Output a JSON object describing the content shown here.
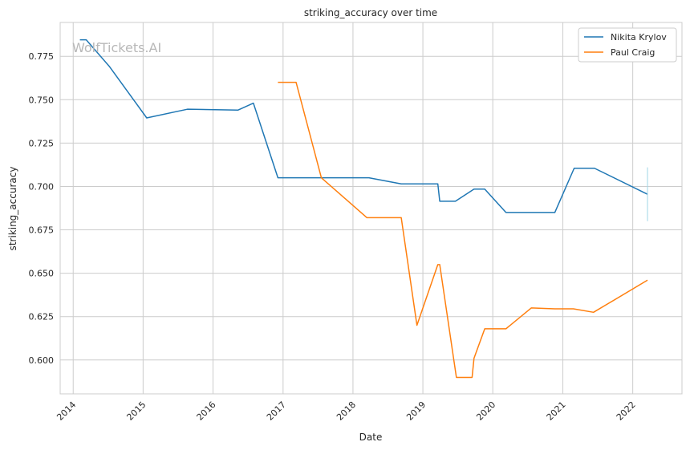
{
  "watermark": "WolfTickets.AI",
  "chart_data": {
    "type": "line",
    "title": "striking_accuracy over time",
    "xlabel": "Date",
    "ylabel": "striking_accuracy",
    "xlim": [
      "2013-10-25",
      "2022-09-15"
    ],
    "ylim": [
      0.5805,
      0.7945
    ],
    "x_ticks": [
      "2014",
      "2015",
      "2016",
      "2017",
      "2018",
      "2019",
      "2020",
      "2021",
      "2022"
    ],
    "y_ticks": [
      "0.600",
      "0.625",
      "0.650",
      "0.675",
      "0.700",
      "0.725",
      "0.750",
      "0.775"
    ],
    "grid": true,
    "legend_position": "top-right",
    "series": [
      {
        "name": "Nikita Krylov",
        "color": "#1f77b4",
        "points": [
          [
            "2014-02-05",
            0.7845
          ],
          [
            "2014-03-10",
            0.7845
          ],
          [
            "2014-07-10",
            0.769
          ],
          [
            "2015-01-20",
            0.7395
          ],
          [
            "2015-08-20",
            0.7445
          ],
          [
            "2016-05-10",
            0.744
          ],
          [
            "2016-07-30",
            0.748
          ],
          [
            "2016-12-05",
            0.705
          ],
          [
            "2017-07-15",
            0.705
          ],
          [
            "2018-03-25",
            0.705
          ],
          [
            "2018-09-10",
            0.7015
          ],
          [
            "2019-03-20",
            0.7015
          ],
          [
            "2019-03-30",
            0.6915
          ],
          [
            "2019-06-20",
            0.6915
          ],
          [
            "2019-09-25",
            0.6985
          ],
          [
            "2019-11-20",
            0.6985
          ],
          [
            "2020-03-10",
            0.685
          ],
          [
            "2020-11-20",
            0.685
          ],
          [
            "2021-03-01",
            0.7105
          ],
          [
            "2021-06-15",
            0.7105
          ],
          [
            "2022-03-19",
            0.6955
          ]
        ]
      },
      {
        "name": "Paul Craig",
        "color": "#ff7f0e",
        "points": [
          [
            "2016-12-05",
            0.76
          ],
          [
            "2017-03-10",
            0.76
          ],
          [
            "2017-07-20",
            0.705
          ],
          [
            "2018-03-15",
            0.682
          ],
          [
            "2018-09-10",
            0.682
          ],
          [
            "2018-12-01",
            0.62
          ],
          [
            "2019-03-20",
            0.655
          ],
          [
            "2019-03-30",
            0.655
          ],
          [
            "2019-06-25",
            0.59
          ],
          [
            "2019-09-15",
            0.59
          ],
          [
            "2019-09-25",
            0.601
          ],
          [
            "2019-11-20",
            0.618
          ],
          [
            "2020-03-10",
            0.618
          ],
          [
            "2020-07-20",
            0.63
          ],
          [
            "2020-11-20",
            0.6295
          ],
          [
            "2021-02-25",
            0.6295
          ],
          [
            "2021-06-10",
            0.6275
          ],
          [
            "2022-03-19",
            0.646
          ]
        ]
      }
    ],
    "annotations": [
      {
        "type": "vertical-segment",
        "x": "2022-03-19",
        "y_range": [
          0.68,
          0.711
        ],
        "color": "#9fd6e6"
      }
    ]
  }
}
